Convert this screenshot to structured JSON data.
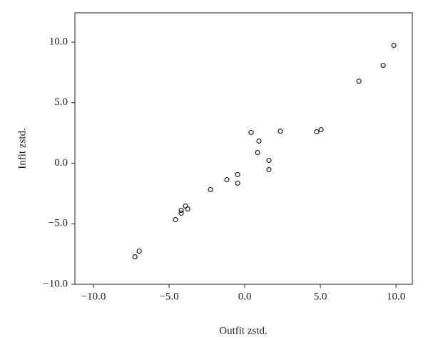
{
  "chart_data": {
    "type": "scatter",
    "xlabel": "Outfit zstd.",
    "ylabel": "Infit zstd.",
    "x": [
      -7.26,
      -6.98,
      -4.58,
      -4.2,
      -4.2,
      -3.92,
      -3.77,
      -2.26,
      -1.18,
      -0.47,
      -0.47,
      0.42,
      0.94,
      0.85,
      1.6,
      1.6,
      2.36,
      4.76,
      5.05,
      7.55,
      9.15,
      9.86
    ],
    "values": [
      -7.73,
      -7.26,
      -4.66,
      -4.13,
      -3.89,
      -3.54,
      -3.78,
      -2.18,
      -1.36,
      -1.65,
      -0.94,
      2.54,
      1.83,
      0.88,
      0.24,
      -0.53,
      2.65,
      2.6,
      2.77,
      6.78,
      8.08,
      9.73
    ],
    "color": "#222222",
    "xlim": [
      -11.23,
      11.08
    ],
    "ylim": [
      -10,
      12.42
    ],
    "xticks": [
      {
        "value": -10,
        "label": "−10.0"
      },
      {
        "value": -5,
        "label": "−5.0"
      },
      {
        "value": 0,
        "label": "0.0"
      },
      {
        "value": 5,
        "label": "5.0"
      },
      {
        "value": 10,
        "label": "10.0"
      }
    ],
    "yticks": [
      {
        "value": -10,
        "label": "−10.0"
      },
      {
        "value": -5,
        "label": "−5.0"
      },
      {
        "value": 0,
        "label": "0.0"
      },
      {
        "value": 5,
        "label": "5.0"
      },
      {
        "value": 10,
        "label": "10.0"
      }
    ]
  }
}
